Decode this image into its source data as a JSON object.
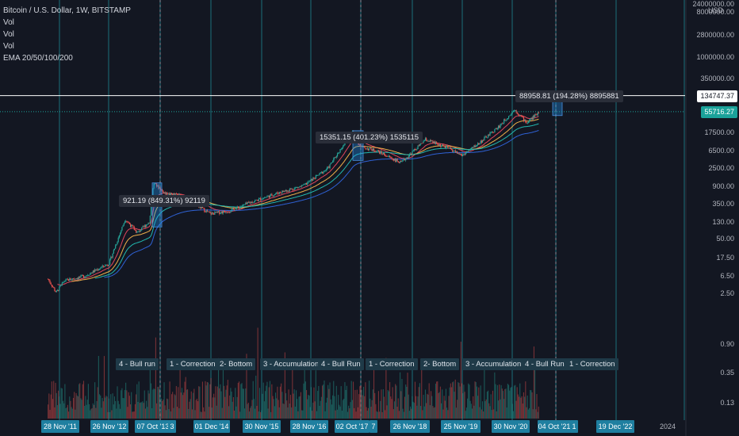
{
  "chart_data": {
    "type": "candlestick",
    "title": "Bitcoin / U.S. Dollar, 1W, BITSTAMP",
    "legend": [
      "Vol",
      "Vol",
      "Vol",
      "EMA 20/50/100/200"
    ],
    "currency": "USD",
    "y_scale": "log",
    "y_ticks": [
      "24000000.00",
      "8000000.00",
      "2800000.00",
      "1000000.00",
      "350000.00",
      "17500.00",
      "6500.00",
      "2500.00",
      "900.00",
      "350.00",
      "130.00",
      "50.00",
      "17.50",
      "6.50",
      "2.50",
      "0.90",
      "0.35",
      "0.13"
    ],
    "price_tags": {
      "horizontal_line": "134747.37",
      "current": "55716.27"
    },
    "x_labels": [
      "28 Nov '11",
      "26 Nov '12",
      "07 Oct '13",
      "3",
      "01 Dec '14",
      "30 Nov '15",
      "28 Nov '16",
      "02 Oct '17",
      "7",
      "26 Nov '18",
      "25 Nov '19",
      "30 Nov '20",
      "04 Oct '21",
      "1",
      "19 Dec '22",
      "2024"
    ],
    "annotations": [
      {
        "text": "921.19 (849.31%) 92119",
        "price_start": 97,
        "price_end": 1100
      },
      {
        "text": "15351.15 (401.23%) 1535115",
        "price_start": 3800,
        "price_end": 19500
      },
      {
        "text": "88958.81 (194.28%) 8895881",
        "price_start": 45000,
        "price_end": 134747
      }
    ],
    "phases": [
      "4 - Bull run",
      "1 - Correction",
      "2- Bottom",
      "3 - Accumulation",
      "4 - Bull Run",
      "1 - Correction",
      "2- Bottom",
      "3 - Accumulation",
      "4 - Bull Run",
      "1 - Correction"
    ],
    "price_path": [
      [
        "2011-09",
        5.5
      ],
      [
        "2011-11",
        2.6
      ],
      [
        "2012-01",
        5.0
      ],
      [
        "2012-06",
        6.5
      ],
      [
        "2012-12",
        13
      ],
      [
        "2013-04",
        150
      ],
      [
        "2013-07",
        70
      ],
      [
        "2013-10",
        130
      ],
      [
        "2013-11",
        1100
      ],
      [
        "2014-02",
        600
      ],
      [
        "2014-06",
        550
      ],
      [
        "2015-01",
        200
      ],
      [
        "2015-06",
        240
      ],
      [
        "2015-11",
        380
      ],
      [
        "2016-06",
        650
      ],
      [
        "2016-12",
        950
      ],
      [
        "2017-06",
        2500
      ],
      [
        "2017-12",
        19000
      ],
      [
        "2018-02",
        8000
      ],
      [
        "2018-06",
        6500
      ],
      [
        "2018-12",
        3300
      ],
      [
        "2019-06",
        12000
      ],
      [
        "2019-12",
        7200
      ],
      [
        "2020-03",
        5000
      ],
      [
        "2020-07",
        9500
      ],
      [
        "2020-12",
        24000
      ],
      [
        "2021-04",
        63000
      ],
      [
        "2021-07",
        30000
      ],
      [
        "2021-10",
        55716
      ]
    ]
  }
}
